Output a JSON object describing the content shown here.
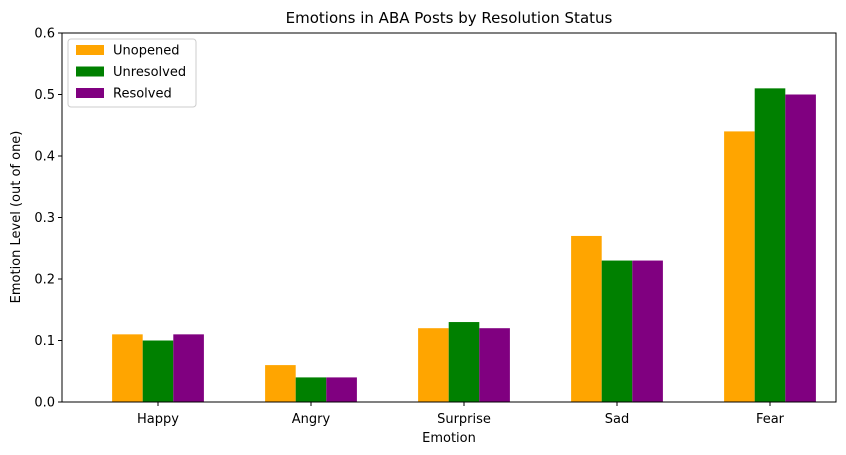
{
  "chart_data": {
    "type": "bar",
    "title": "Emotions in ABA Posts by Resolution Status",
    "xlabel": "Emotion",
    "ylabel": "Emotion Level (out of one)",
    "categories": [
      "Happy",
      "Angry",
      "Surprise",
      "Sad",
      "Fear"
    ],
    "series": [
      {
        "name": "Unopened",
        "color": "#ffa500",
        "values": [
          0.11,
          0.06,
          0.12,
          0.27,
          0.44
        ]
      },
      {
        "name": "Unresolved",
        "color": "#008000",
        "values": [
          0.1,
          0.04,
          0.13,
          0.23,
          0.51
        ]
      },
      {
        "name": "Resolved",
        "color": "#800080",
        "values": [
          0.11,
          0.04,
          0.12,
          0.23,
          0.5
        ]
      }
    ],
    "ylim": [
      0,
      0.6
    ],
    "yticks": [
      "0.0",
      "0.1",
      "0.2",
      "0.3",
      "0.4",
      "0.5",
      "0.6"
    ],
    "legend": "top-left",
    "grid": false
  }
}
